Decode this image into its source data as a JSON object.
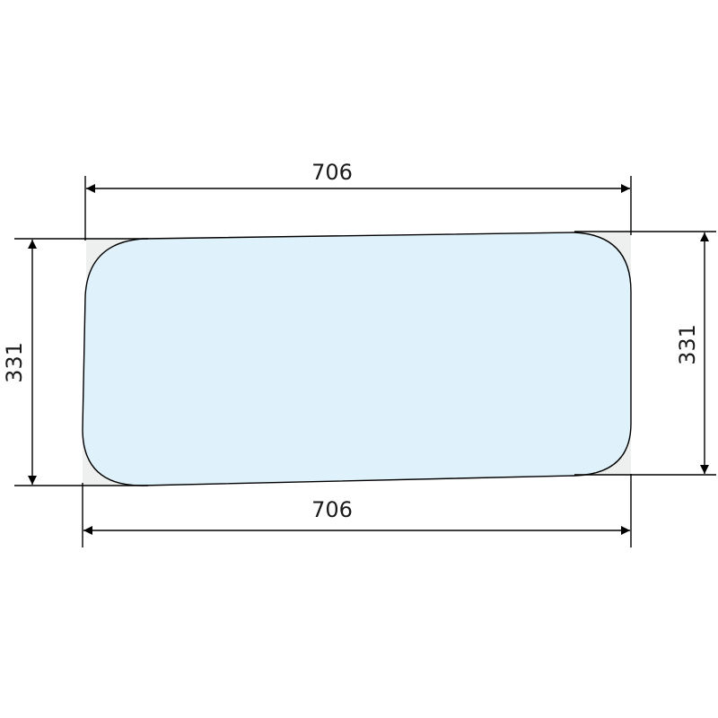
{
  "drawing": {
    "dimensions": {
      "top_width": "706",
      "bottom_width": "706",
      "left_height": "331",
      "right_height": "331"
    },
    "colors": {
      "glass_fill": "#dff1fa",
      "outline": "#000000",
      "corner_fill": "#eef0ef"
    }
  }
}
